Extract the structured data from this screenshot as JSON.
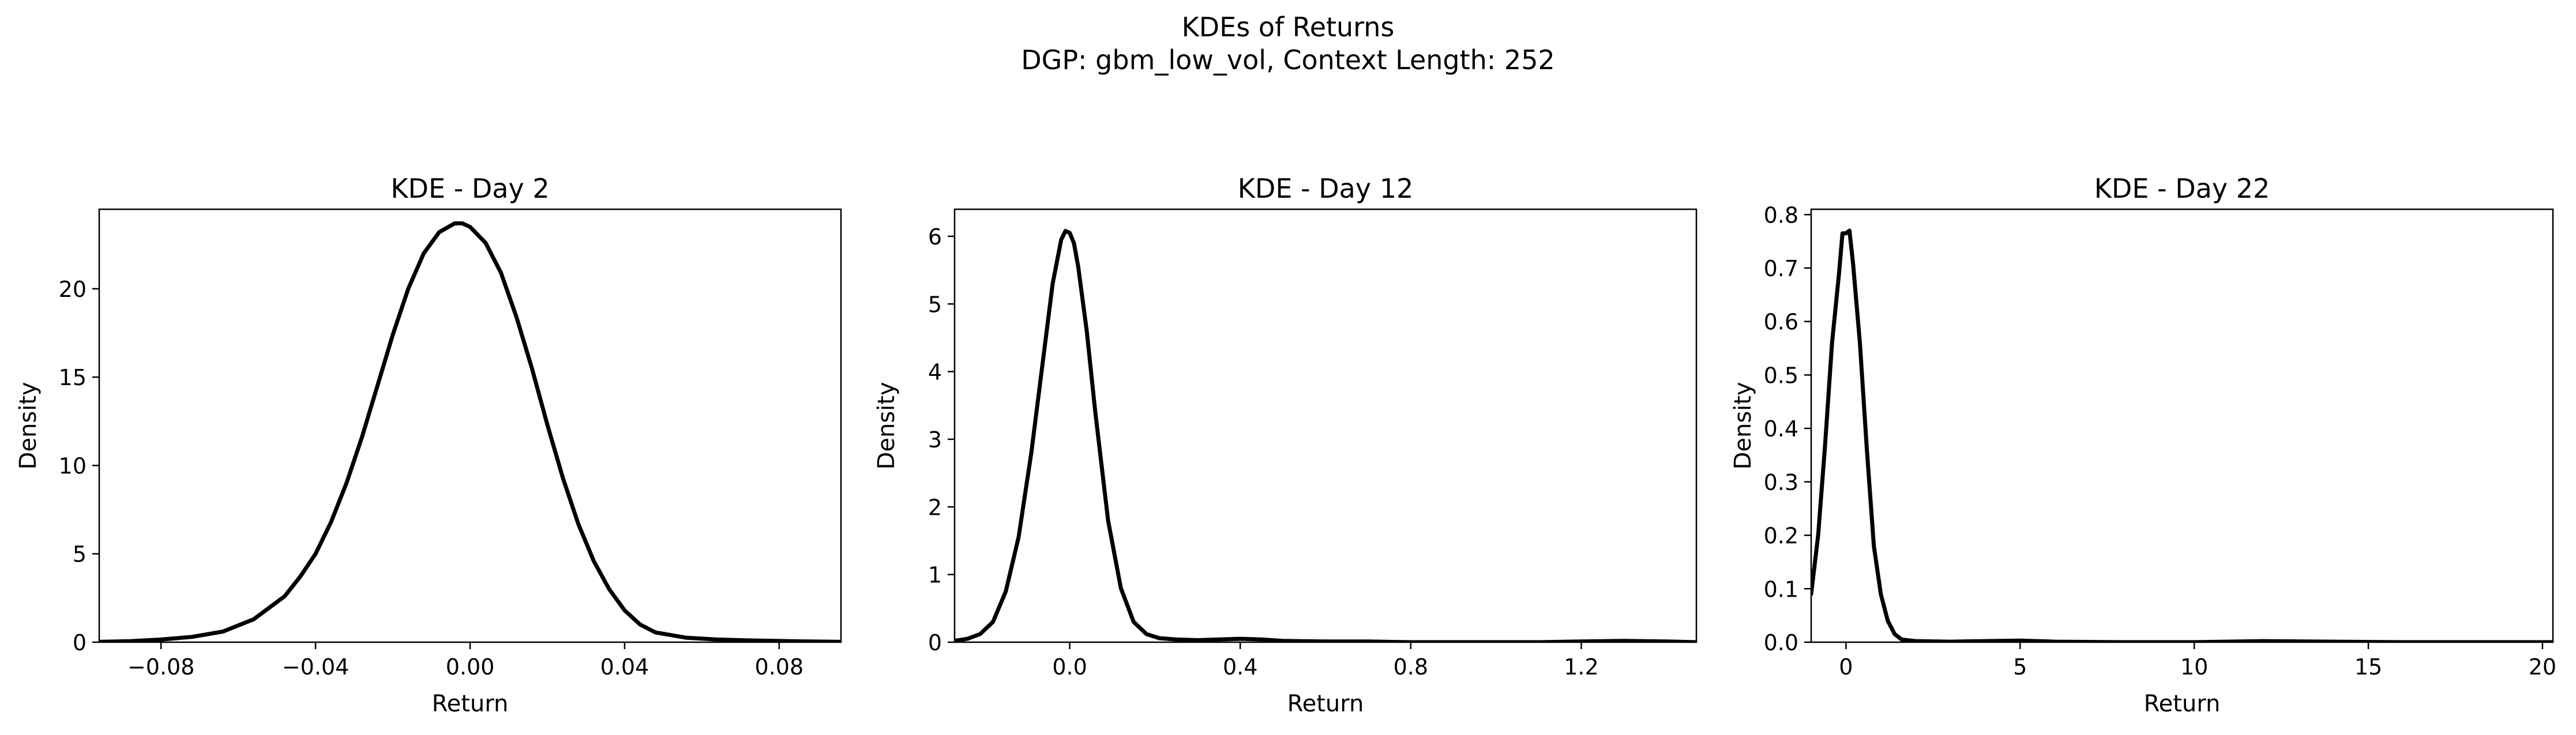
{
  "figure": {
    "title_line1": "KDEs of Returns",
    "title_line2": "DGP: gbm_low_vol, Context Length: 252"
  },
  "chart_data": [
    {
      "type": "line",
      "title": "KDE - Day 2",
      "xlabel": "Return",
      "ylabel": "Density",
      "xlim": [
        -0.096,
        0.096
      ],
      "ylim": [
        0,
        24.5
      ],
      "xticks": [
        -0.08,
        -0.04,
        0.0,
        0.04,
        0.08
      ],
      "xtick_labels": [
        "−0.08",
        "−0.04",
        "0.00",
        "0.04",
        "0.08"
      ],
      "yticks": [
        0,
        5,
        10,
        15,
        20
      ],
      "ytick_labels": [
        "0",
        "5",
        "10",
        "15",
        "20"
      ],
      "grid": false,
      "color": "#000000",
      "x": [
        -0.096,
        -0.088,
        -0.08,
        -0.072,
        -0.064,
        -0.056,
        -0.048,
        -0.044,
        -0.04,
        -0.036,
        -0.032,
        -0.028,
        -0.024,
        -0.02,
        -0.016,
        -0.012,
        -0.008,
        -0.004,
        -0.002,
        0.0,
        0.004,
        0.008,
        0.012,
        0.016,
        0.02,
        0.024,
        0.028,
        0.032,
        0.036,
        0.04,
        0.044,
        0.048,
        0.056,
        0.064,
        0.072,
        0.08,
        0.088,
        0.096
      ],
      "y": [
        0.02,
        0.06,
        0.15,
        0.3,
        0.6,
        1.3,
        2.6,
        3.7,
        5.0,
        6.8,
        9.0,
        11.6,
        14.5,
        17.4,
        20.0,
        22.0,
        23.2,
        23.7,
        23.7,
        23.5,
        22.6,
        20.9,
        18.4,
        15.5,
        12.3,
        9.3,
        6.7,
        4.6,
        3.0,
        1.8,
        1.0,
        0.55,
        0.25,
        0.15,
        0.1,
        0.07,
        0.04,
        0.02
      ]
    },
    {
      "type": "line",
      "title": "KDE - Day 12",
      "xlabel": "Return",
      "ylabel": "Density",
      "xlim": [
        -0.27,
        1.47
      ],
      "ylim": [
        0,
        6.4
      ],
      "xticks": [
        0.0,
        0.4,
        0.8,
        1.2
      ],
      "xtick_labels": [
        "0.0",
        "0.4",
        "0.8",
        "1.2"
      ],
      "yticks": [
        0,
        1,
        2,
        3,
        4,
        5,
        6
      ],
      "ytick_labels": [
        "0",
        "1",
        "2",
        "3",
        "4",
        "5",
        "6"
      ],
      "grid": false,
      "color": "#000000",
      "x": [
        -0.27,
        -0.24,
        -0.21,
        -0.18,
        -0.15,
        -0.12,
        -0.09,
        -0.06,
        -0.04,
        -0.02,
        -0.01,
        0.0,
        0.01,
        0.02,
        0.04,
        0.06,
        0.09,
        0.12,
        0.15,
        0.18,
        0.21,
        0.25,
        0.3,
        0.35,
        0.4,
        0.45,
        0.5,
        0.6,
        0.7,
        0.8,
        0.9,
        1.0,
        1.1,
        1.2,
        1.3,
        1.4,
        1.47
      ],
      "y": [
        0.02,
        0.05,
        0.12,
        0.3,
        0.75,
        1.55,
        2.8,
        4.3,
        5.3,
        5.95,
        6.08,
        6.05,
        5.9,
        5.55,
        4.6,
        3.4,
        1.8,
        0.8,
        0.3,
        0.12,
        0.06,
        0.04,
        0.03,
        0.04,
        0.05,
        0.04,
        0.02,
        0.01,
        0.01,
        0.0,
        0.0,
        0.0,
        0.0,
        0.01,
        0.02,
        0.01,
        0.0
      ]
    },
    {
      "type": "line",
      "title": "KDE - Day 22",
      "xlabel": "Return",
      "ylabel": "Density",
      "xlim": [
        -1.0,
        20.3
      ],
      "ylim": [
        0,
        0.81
      ],
      "xticks": [
        0,
        5,
        10,
        15,
        20
      ],
      "xtick_labels": [
        "0",
        "5",
        "10",
        "15",
        "20"
      ],
      "yticks": [
        0.0,
        0.1,
        0.2,
        0.3,
        0.4,
        0.5,
        0.6,
        0.7,
        0.8
      ],
      "ytick_labels": [
        "0.0",
        "0.1",
        "0.2",
        "0.3",
        "0.4",
        "0.5",
        "0.6",
        "0.7",
        "0.8"
      ],
      "grid": false,
      "color": "#000000",
      "x": [
        -1.0,
        -0.8,
        -0.6,
        -0.4,
        -0.2,
        -0.1,
        0.0,
        0.1,
        0.2,
        0.4,
        0.6,
        0.8,
        1.0,
        1.2,
        1.4,
        1.6,
        2.0,
        3.0,
        4.0,
        5.0,
        6.0,
        8.0,
        10.0,
        12.0,
        14.0,
        16.0,
        18.0,
        20.3
      ],
      "y": [
        0.09,
        0.2,
        0.37,
        0.56,
        0.69,
        0.765,
        0.765,
        0.77,
        0.71,
        0.56,
        0.36,
        0.18,
        0.09,
        0.04,
        0.015,
        0.005,
        0.002,
        0.001,
        0.002,
        0.003,
        0.001,
        0.0,
        0.0,
        0.002,
        0.001,
        0.0,
        0.0,
        0.0
      ]
    }
  ]
}
